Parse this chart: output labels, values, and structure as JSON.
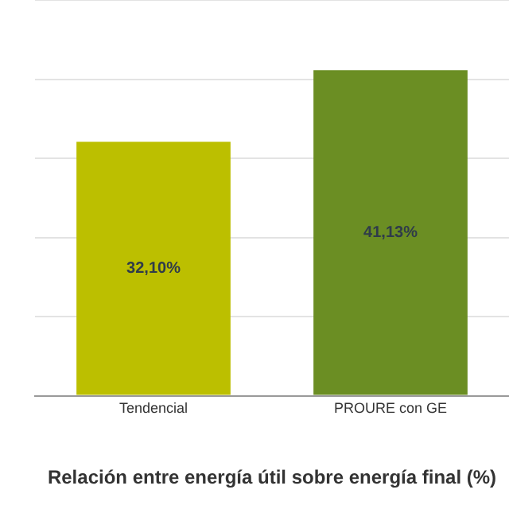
{
  "chart_data": {
    "type": "bar",
    "title": "Relación entre energía útil sobre energía final (%)",
    "categories": [
      "Tendencial",
      "PROURE con GE"
    ],
    "values": [
      32.1,
      41.13
    ],
    "colors": [
      "#bcbf00",
      "#6b8e23"
    ],
    "value_labels": [
      "32,10%",
      "41,13%"
    ],
    "ylim": [
      0,
      50
    ],
    "yticks": [
      {
        "value": 0,
        "label": null
      },
      {
        "value": 10,
        "label": null
      },
      {
        "value": 20,
        "label": null
      },
      {
        "value": 30,
        "label": null
      },
      {
        "value": 40,
        "label": null
      },
      {
        "value": 50,
        "label": null
      }
    ],
    "grid": "y",
    "tick_labels": "x",
    "legend": false
  }
}
